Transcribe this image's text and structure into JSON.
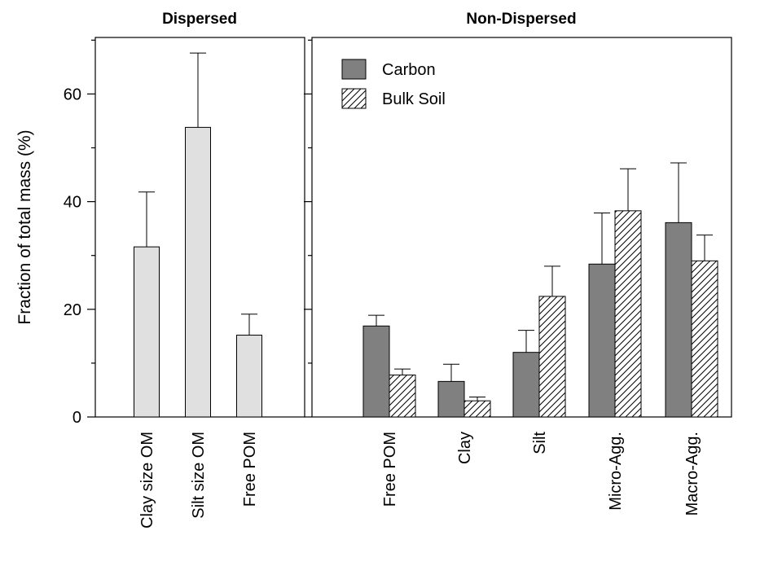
{
  "chart_data": [
    {
      "type": "bar",
      "title": "Dispersed",
      "ylabel": "Fraction of total mass (%)",
      "ylim": [
        0,
        70
      ],
      "yticks": [
        0,
        20,
        40,
        60
      ],
      "categories": [
        "Clay size OM",
        "Silt size OM",
        "Free POM"
      ],
      "series": [
        {
          "values": [
            31.6,
            53.8,
            15.2
          ],
          "errors": [
            10.2,
            13.8,
            3.9
          ],
          "color": "#e0e0e0"
        }
      ],
      "grid": false
    },
    {
      "type": "bar",
      "title": "Non-Dispersed",
      "ylim": [
        0,
        70
      ],
      "categories": [
        "Free POM",
        "Clay",
        "Silt",
        "Micro-Agg.",
        "Macro-Agg."
      ],
      "series": [
        {
          "name": "Carbon",
          "values": [
            16.9,
            6.6,
            12.0,
            28.4,
            36.1
          ],
          "errors": [
            2.0,
            3.2,
            4.1,
            9.5,
            11.1
          ],
          "color": "#808080"
        },
        {
          "name": "Bulk Soil",
          "values": [
            7.8,
            3.0,
            22.4,
            38.3,
            29.0
          ],
          "errors": [
            1.1,
            0.7,
            5.6,
            7.8,
            4.8
          ],
          "pattern": "hatch"
        }
      ],
      "legend": "top-left",
      "grid": false
    }
  ]
}
